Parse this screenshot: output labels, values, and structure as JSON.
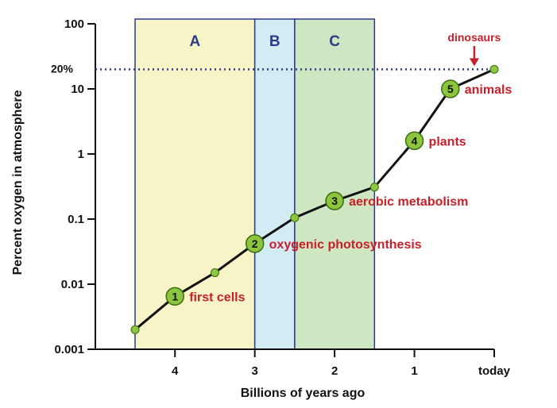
{
  "chart_data": {
    "type": "line",
    "title": "",
    "xlabel": "Billions of years ago",
    "ylabel": "Percent oxygen in atmosphere",
    "x_reversed": true,
    "xlim": [
      4.5,
      0
    ],
    "ylim": [
      0.001,
      100
    ],
    "y_scale": "log",
    "grid": false,
    "x_ticks": [
      {
        "value": 4,
        "label": "4"
      },
      {
        "value": 3,
        "label": "3"
      },
      {
        "value": 2,
        "label": "2"
      },
      {
        "value": 1,
        "label": "1"
      },
      {
        "value": 0,
        "label": "today"
      }
    ],
    "y_ticks": [
      {
        "value": 100,
        "label": "100"
      },
      {
        "value": 10,
        "label": "10"
      },
      {
        "value": 1,
        "label": "1"
      },
      {
        "value": 0.1,
        "label": "0.1"
      },
      {
        "value": 0.01,
        "label": "0.01"
      },
      {
        "value": 0.001,
        "label": "0.001"
      }
    ],
    "series": [
      {
        "x": [
          4.5,
          4.0,
          3.5,
          3.0,
          2.5,
          2.0,
          1.5,
          1.0,
          0.55,
          0.0
        ],
        "y": [
          0.002,
          0.0065,
          0.015,
          0.042,
          0.105,
          0.19,
          0.31,
          1.6,
          10,
          20
        ]
      }
    ],
    "numbered_markers": [
      {
        "num": "1",
        "x": 4.0,
        "y": 0.0065,
        "label": "first cells"
      },
      {
        "num": "2",
        "x": 3.0,
        "y": 0.042,
        "label": "oxygenic photosynthesis"
      },
      {
        "num": "3",
        "x": 2.0,
        "y": 0.19,
        "label": "aerobic metabolism"
      },
      {
        "num": "4",
        "x": 1.0,
        "y": 1.6,
        "label": "plants"
      },
      {
        "num": "5",
        "x": 0.55,
        "y": 10,
        "label": "animals"
      }
    ],
    "regions": [
      {
        "label": "A",
        "x_from": 4.5,
        "x_to": 3.0,
        "color": "#f7f4c8"
      },
      {
        "label": "B",
        "x_from": 3.0,
        "x_to": 2.5,
        "color": "#d2ecf4"
      },
      {
        "label": "C",
        "x_from": 2.5,
        "x_to": 1.5,
        "color": "#cfe6c2"
      }
    ],
    "reference_line": {
      "y": 20,
      "label": "20%",
      "color": "#2b3a8a"
    },
    "callout": {
      "label": "dinosaurs",
      "x": 0.25,
      "color": "#c8202a"
    },
    "colors": {
      "line": "#111111",
      "marker_fill": "#8cc63f",
      "marker_stroke": "#3d6b12",
      "region_border": "#2b3a8a",
      "event_text": "#c8202a"
    }
  }
}
